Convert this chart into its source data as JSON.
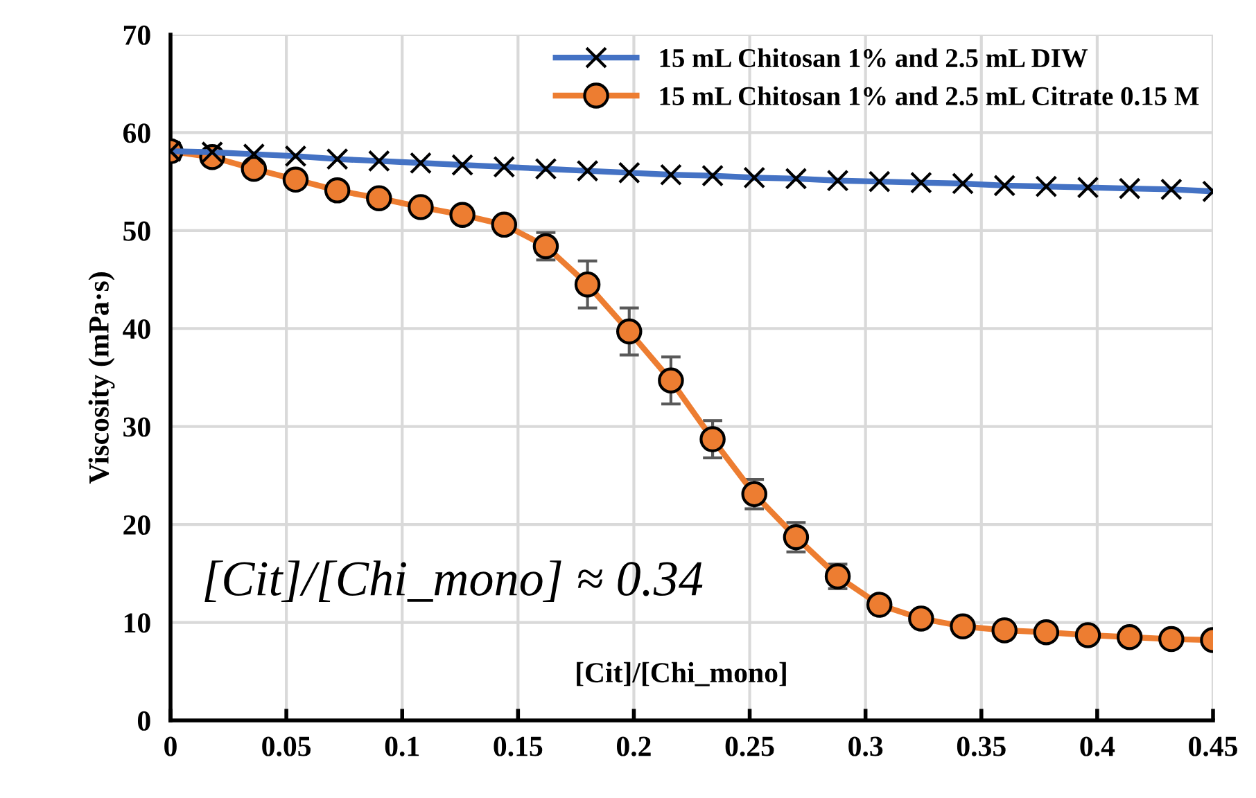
{
  "chart_data": {
    "type": "line",
    "ylabel": "Viscosity (mPa·s)",
    "xlabel": "[Cit]/[Chi_mono]",
    "annotations": [
      "[Cit]/[Chi_mono] ≈ 0.34"
    ],
    "x": [
      0,
      0.018,
      0.036,
      0.054,
      0.072,
      0.09,
      0.108,
      0.126,
      0.144,
      0.162,
      0.18,
      0.198,
      0.216,
      0.234,
      0.252,
      0.27,
      0.288,
      0.306,
      0.324,
      0.342,
      0.36,
      0.378,
      0.396,
      0.414,
      0.432,
      0.45
    ],
    "series": [
      {
        "name": "15 mL Chitosan 1% and 2.5 mL DIW",
        "color": "#4472c4",
        "marker": "cross",
        "values": [
          58.1,
          58.0,
          57.8,
          57.6,
          57.3,
          57.1,
          56.9,
          56.7,
          56.5,
          56.3,
          56.1,
          55.9,
          55.7,
          55.6,
          55.4,
          55.3,
          55.1,
          55.0,
          54.9,
          54.8,
          54.6,
          54.5,
          54.4,
          54.3,
          54.2,
          54.0
        ]
      },
      {
        "name": "15 mL Chitosan 1% and 2.5 mL Citrate 0.15 M",
        "color": "#ed7d31",
        "marker": "circle",
        "values": [
          58.1,
          57.5,
          56.3,
          55.2,
          54.1,
          53.3,
          52.4,
          51.6,
          50.6,
          48.4,
          44.5,
          39.7,
          34.7,
          28.7,
          23.1,
          18.7,
          14.7,
          11.8,
          10.4,
          9.6,
          9.2,
          9.0,
          8.7,
          8.5,
          8.3,
          8.2
        ],
        "errors": [
          null,
          null,
          null,
          null,
          null,
          null,
          null,
          null,
          null,
          1.4,
          2.4,
          2.4,
          2.4,
          1.9,
          1.5,
          1.5,
          1.25,
          null,
          null,
          null,
          null,
          null,
          null,
          null,
          null,
          null
        ]
      }
    ],
    "xlim": [
      0,
      0.45
    ],
    "xticks": [
      0,
      0.05,
      0.1,
      0.15,
      0.2,
      0.25,
      0.3,
      0.35,
      0.4,
      0.45
    ],
    "ylim": [
      0,
      70
    ],
    "yticks": [
      0,
      10,
      20,
      30,
      40,
      50,
      60,
      70
    ],
    "grid": true,
    "legend": "top right",
    "line_style": "solid"
  }
}
